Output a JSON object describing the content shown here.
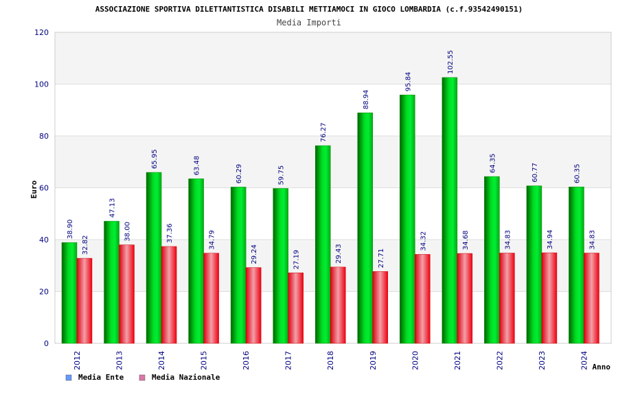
{
  "chart_data": {
    "type": "bar",
    "title": "ASSOCIAZIONE SPORTIVA DILETTANTISTICA DISABILI METTIAMOCI IN GIOCO LOMBARDIA (c.f.93542490151)",
    "subtitle": "Media Importi",
    "xlabel": "Anno",
    "ylabel": "Euro",
    "ylim": [
      0,
      120
    ],
    "yticks": [
      "0",
      "20",
      "40",
      "60",
      "80",
      "100",
      "120"
    ],
    "grid": true,
    "legend_position": "bottom-left",
    "categories": [
      "2012",
      "2013",
      "2014",
      "2015",
      "2016",
      "2017",
      "2018",
      "2019",
      "2020",
      "2021",
      "2022",
      "2023",
      "2024"
    ],
    "series": [
      {
        "name": "Media Ente",
        "color": "#00cc00",
        "legend_color": "#6699ff",
        "values": [
          38.9,
          47.13,
          65.95,
          63.48,
          60.29,
          59.75,
          76.27,
          88.94,
          95.84,
          102.55,
          64.35,
          60.77,
          60.35
        ],
        "labels": [
          "38.90",
          "47.13",
          "65.95",
          "63.48",
          "60.29",
          "59.75",
          "76.27",
          "88.94",
          "95.84",
          "102.55",
          "64.35",
          "60.77",
          "60.35"
        ]
      },
      {
        "name": "Media Nazionale",
        "color": "#ee1122",
        "legend_color": "#dd77aa",
        "values": [
          32.82,
          38.0,
          37.36,
          34.79,
          29.24,
          27.19,
          29.43,
          27.71,
          34.32,
          34.68,
          34.83,
          34.94,
          34.83
        ],
        "labels": [
          "32.82",
          "38.00",
          "37.36",
          "34.79",
          "29.24",
          "27.19",
          "29.43",
          "27.71",
          "34.32",
          "34.68",
          "34.83",
          "34.94",
          "34.83"
        ]
      }
    ]
  }
}
